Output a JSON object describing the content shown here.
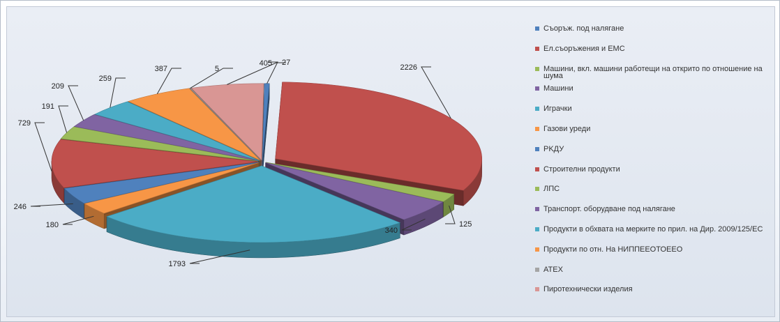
{
  "colors": {
    "background": "#e3e8f0",
    "label_line": "#333333"
  },
  "chart_data": {
    "type": "pie",
    "variant": "3d-exploded",
    "title": "",
    "legend_position": "right",
    "slices": [
      {
        "label": "Съоръж. под налягане",
        "value": 27,
        "color": "#4f81bd"
      },
      {
        "label": "Ел.съоръжения и ЕМС",
        "value": 2226,
        "color": "#c0504d"
      },
      {
        "label": "Машини, вкл. машини работещи на открито по отношение на шума",
        "value": 125,
        "color": "#9bbb59"
      },
      {
        "label": "Машини",
        "value": 340,
        "color": "#8064a2"
      },
      {
        "label": "Играчки",
        "value": 1793,
        "color": "#4bacc6"
      },
      {
        "label": "Газови уреди",
        "value": 180,
        "color": "#f79646"
      },
      {
        "label": "PKДУ",
        "value": 246,
        "color": "#4f81bd"
      },
      {
        "label": "Строителни продукти",
        "value": 729,
        "color": "#c0504d"
      },
      {
        "label": "ЛПС",
        "value": 191,
        "color": "#9bbb59"
      },
      {
        "label": "Транспорт. оборудване под налягане",
        "value": 209,
        "color": "#8064a2"
      },
      {
        "label": "Продукти в обхвата на мерките по прил. на Дир. 2009/125/ЕС",
        "value": 259,
        "color": "#4bacc6"
      },
      {
        "label": "Продукти по отн. На НИППЕЕОТОЕЕО",
        "value": 387,
        "color": "#f79646"
      },
      {
        "label": "ATEX",
        "value": 5,
        "color": "#a5a5a5"
      },
      {
        "label": "Пиротехнически изделия",
        "value": 405,
        "color": "#d99694"
      }
    ]
  }
}
